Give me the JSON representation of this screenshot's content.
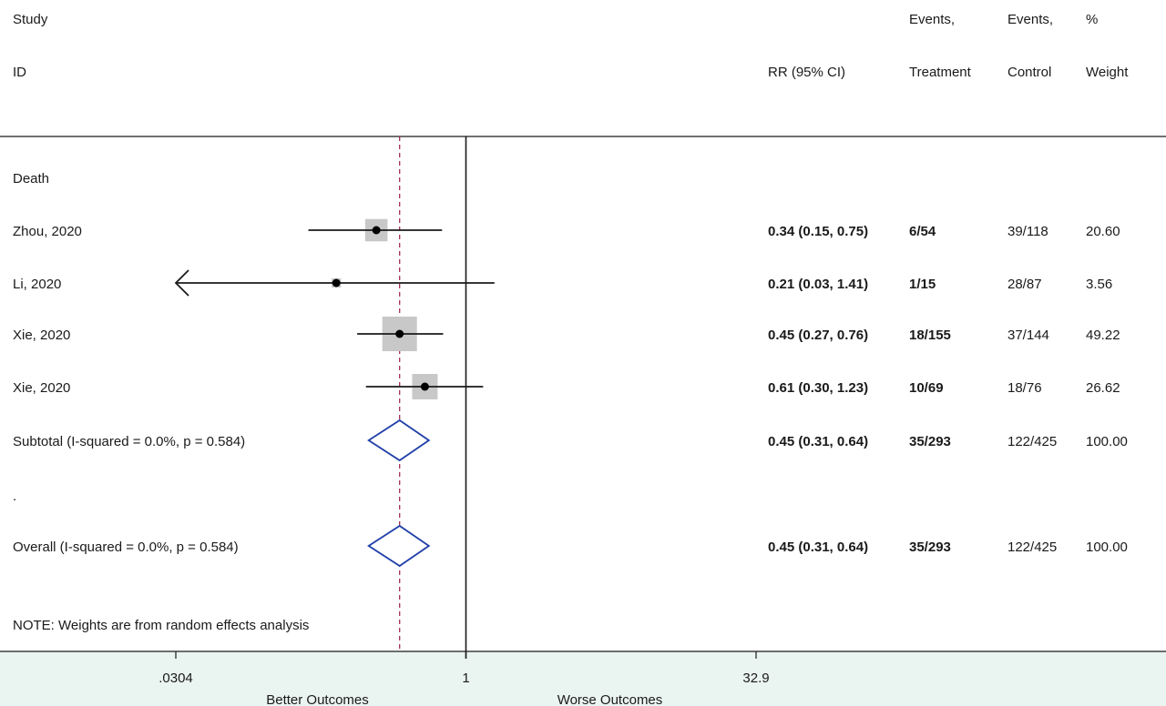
{
  "header": {
    "study": "Study",
    "id": "ID",
    "rr": "RR (95% CI)",
    "events_treatment_1": "Events,",
    "events_treatment_2": "Treatment",
    "events_control_1": "Events,",
    "events_control_2": "Control",
    "weight_1": "%",
    "weight_2": "Weight"
  },
  "group_label": "Death",
  "note": "NOTE: Weights are from random effects analysis",
  "dot_row": ".",
  "colors": {
    "line": "#1a1a1a",
    "box": "#c8c8c8",
    "diamond": "#1f3ea8",
    "dashed": "#a33050",
    "band": "#eaf4f1"
  },
  "chart_data": {
    "type": "forest",
    "scale": "log",
    "null_value": 1,
    "pooled_estimate": 0.45,
    "axis_ticks": [
      {
        "value": 0.0304,
        "label": ".0304"
      },
      {
        "value": 1,
        "label": "1"
      },
      {
        "value": 32.9,
        "label": "32.9"
      }
    ],
    "axis_range": [
      0.0304,
      32.9
    ],
    "xlabel_left": "Better Outcomes",
    "xlabel_right": "Worse Outcomes",
    "studies": [
      {
        "name": "Zhou, 2020",
        "rr": 0.34,
        "lo": 0.15,
        "hi": 0.75,
        "rr_text": "0.34 (0.15, 0.75)",
        "treatment": "6/54",
        "control": "39/118",
        "weight": 20.6,
        "weight_text": "20.60",
        "arrow_left": false
      },
      {
        "name": "Li, 2020",
        "rr": 0.21,
        "lo": 0.03,
        "hi": 1.41,
        "rr_text": "0.21 (0.03, 1.41)",
        "treatment": "1/15",
        "control": "28/87",
        "weight": 3.56,
        "weight_text": "3.56",
        "arrow_left": true
      },
      {
        "name": "Xie, 2020",
        "rr": 0.45,
        "lo": 0.27,
        "hi": 0.76,
        "rr_text": "0.45 (0.27, 0.76)",
        "treatment": "18/155",
        "control": "37/144",
        "weight": 49.22,
        "weight_text": "49.22",
        "arrow_left": false
      },
      {
        "name": "Xie, 2020",
        "rr": 0.61,
        "lo": 0.3,
        "hi": 1.23,
        "rr_text": "0.61 (0.30, 1.23)",
        "treatment": "10/69",
        "control": "18/76",
        "weight": 26.62,
        "weight_text": "26.62",
        "arrow_left": false
      }
    ],
    "subtotal": {
      "label": "Subtotal  (I-squared = 0.0%, p = 0.584)",
      "rr": 0.45,
      "lo": 0.31,
      "hi": 0.64,
      "rr_text": "0.45 (0.31, 0.64)",
      "treatment": "35/293",
      "control": "122/425",
      "weight_text": "100.00"
    },
    "overall": {
      "label": "Overall  (I-squared = 0.0%, p = 0.584)",
      "rr": 0.45,
      "lo": 0.31,
      "hi": 0.64,
      "rr_text": "0.45 (0.31, 0.64)",
      "treatment": "35/293",
      "control": "122/425",
      "weight_text": "100.00"
    }
  }
}
